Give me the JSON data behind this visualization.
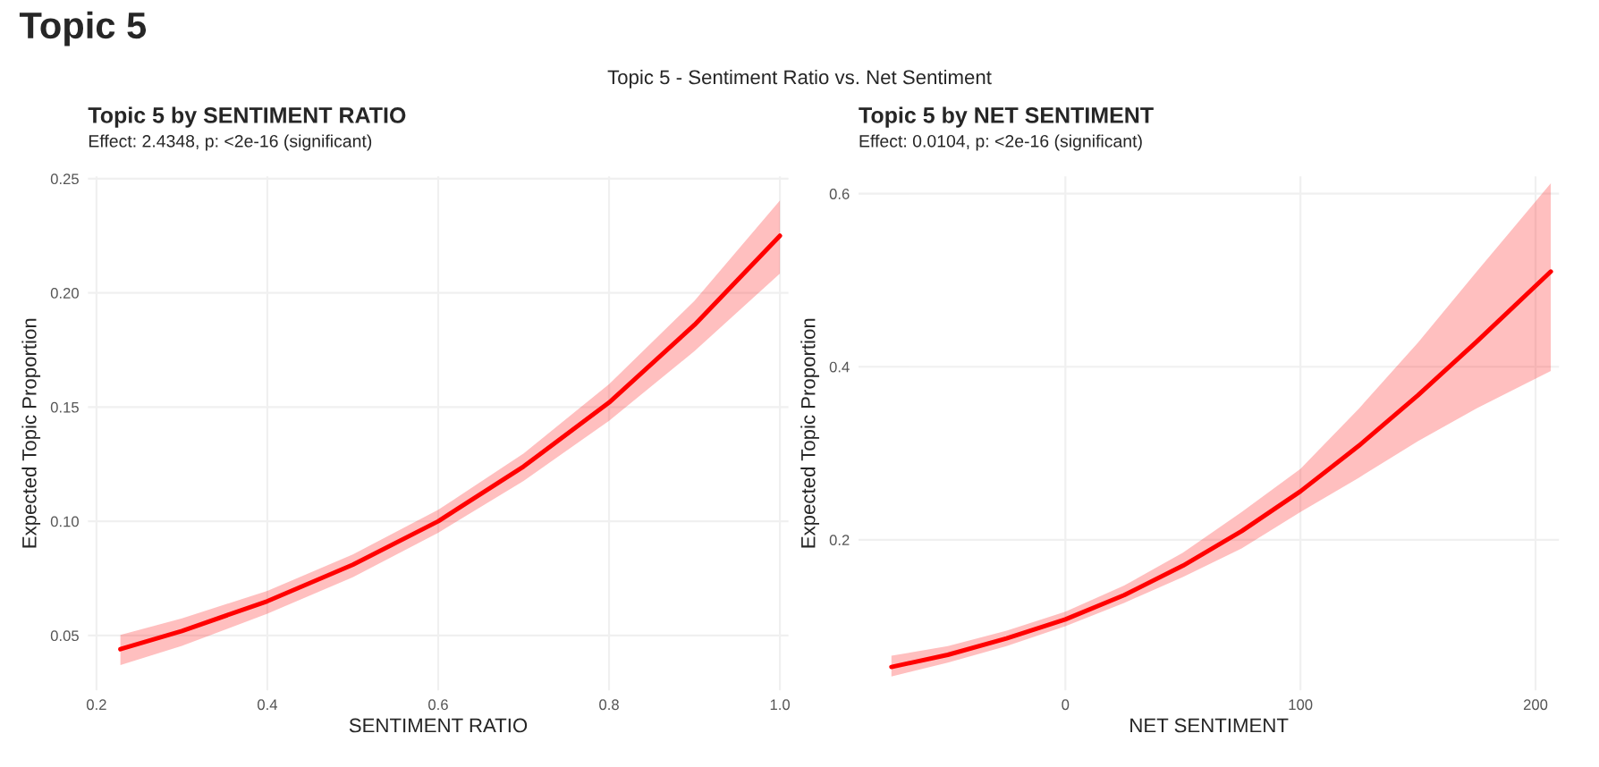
{
  "chart_data": [
    {
      "type": "line",
      "title": "Topic 5 by SENTIMENT RATIO",
      "subtitle": "Effect: 2.4348, p: <2e-16 (significant)",
      "xlabel": "SENTIMENT RATIO",
      "ylabel": "Expected Topic Proportion",
      "annotations": [
        "Topic 5",
        "Topic 5 - Sentiment Ratio vs. Net Sentiment"
      ],
      "series": [
        {
          "color": "#ff0000",
          "x": [
            0.228,
            0.3,
            0.4,
            0.5,
            0.6,
            0.7,
            0.8,
            0.9,
            1.0
          ],
          "values": [
            0.044,
            0.052,
            0.065,
            0.081,
            0.1,
            0.124,
            0.152,
            0.186,
            0.225
          ],
          "lower": [
            0.037,
            0.0455,
            0.0595,
            0.0755,
            0.095,
            0.1177,
            0.144,
            0.1745,
            0.2085
          ],
          "upper": [
            0.0502,
            0.0575,
            0.0695,
            0.0855,
            0.105,
            0.1297,
            0.16,
            0.1965,
            0.2405
          ]
        }
      ],
      "xlim": [
        0.19,
        1.01
      ],
      "ylim": [
        0.026,
        0.251
      ],
      "xticks": [
        0.2,
        0.4,
        0.6,
        0.8,
        {
          "value": 1.0,
          "label": "1.0"
        }
      ],
      "yticks": [
        0.05,
        {
          "value": 0.1,
          "label": "0.10"
        },
        0.15,
        {
          "value": 0.2,
          "label": "0.20"
        },
        0.25
      ],
      "grid": true,
      "legend": false
    },
    {
      "type": "line",
      "title": "Topic 5 by NET SENTIMENT",
      "subtitle": "Effect: 0.0104, p: <2e-16 (significant)",
      "xlabel": "NET SENTIMENT",
      "ylabel": "Expected Topic Proportion",
      "series": [
        {
          "color": "#ff0000",
          "x": [
            -74,
            -50,
            -25,
            0,
            25,
            50,
            75,
            100,
            125,
            150,
            175,
            206.5
          ],
          "values": [
            0.053,
            0.067,
            0.086,
            0.108,
            0.136,
            0.17,
            0.21,
            0.256,
            0.309,
            0.367,
            0.429,
            0.51
          ],
          "lower": [
            0.042,
            0.058,
            0.077,
            0.1,
            0.127,
            0.157,
            0.19,
            0.232,
            0.272,
            0.314,
            0.352,
            0.395
          ],
          "upper": [
            0.066,
            0.077,
            0.095,
            0.117,
            0.147,
            0.185,
            0.232,
            0.282,
            0.352,
            0.428,
            0.51,
            0.612
          ]
        }
      ],
      "xlim": [
        -88,
        210
      ],
      "ylim": [
        0.026,
        0.62
      ],
      "xticks": [
        0,
        100,
        200
      ],
      "yticks": [
        0.2,
        0.4,
        0.6
      ],
      "grid": true,
      "legend": false
    }
  ]
}
